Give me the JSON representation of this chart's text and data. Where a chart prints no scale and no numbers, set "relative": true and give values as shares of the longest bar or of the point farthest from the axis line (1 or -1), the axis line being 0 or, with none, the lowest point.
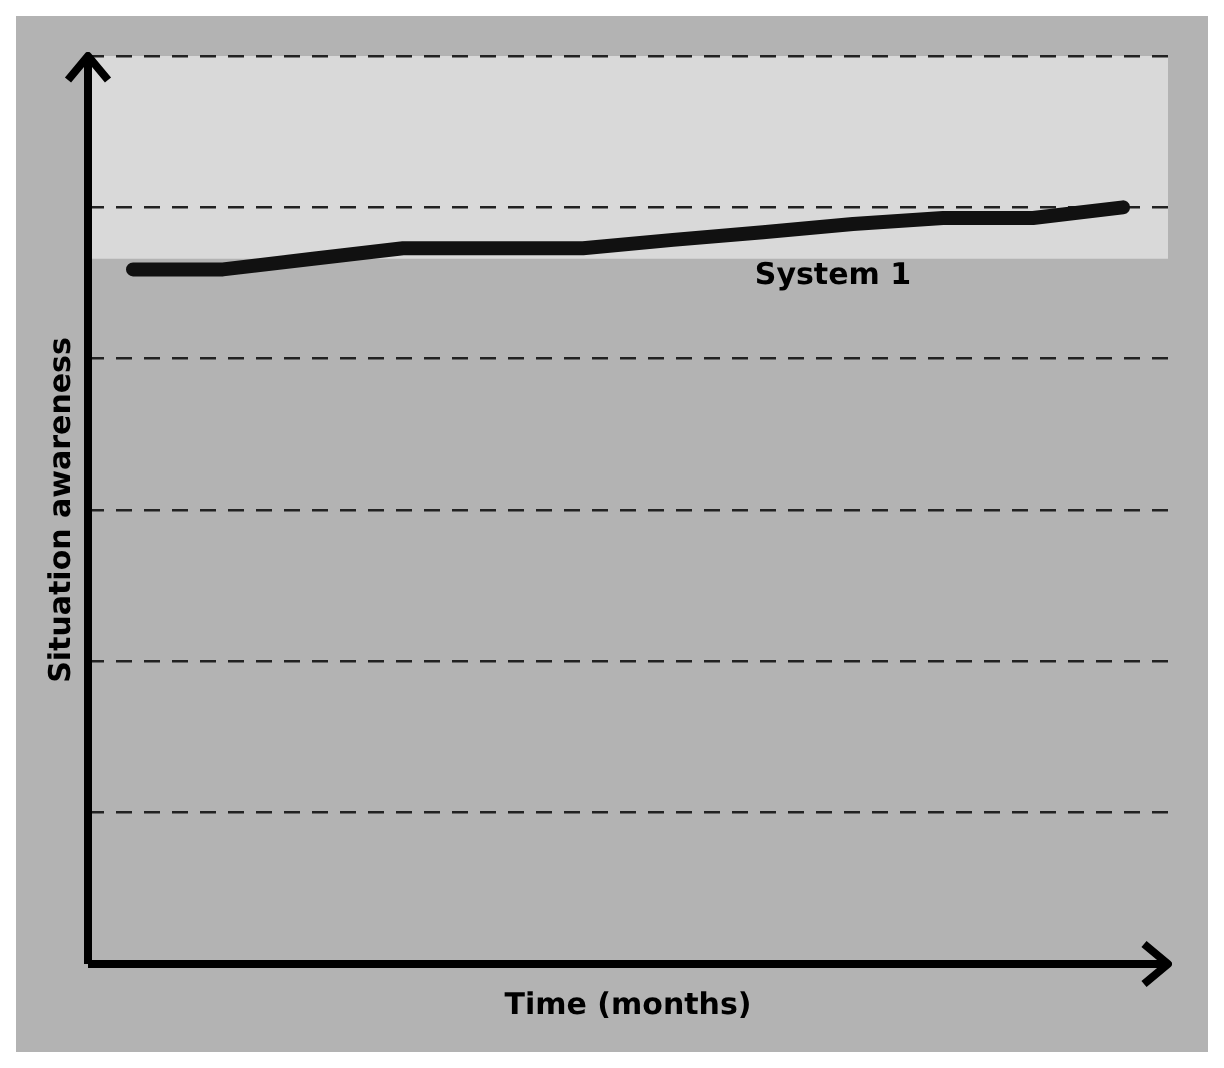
{
  "chart_data": {
    "type": "line",
    "relative": true,
    "xlabel": "Time (months)",
    "ylabel": "Situation awareness",
    "categories": [
      null,
      null,
      null,
      null,
      null,
      null,
      null,
      null,
      null,
      null,
      null,
      null
    ],
    "series": [
      {
        "color": "#111111",
        "values": [
          0.918,
          0.918,
          0.932,
          0.946,
          0.946,
          0.946,
          0.957,
          0.967,
          0.978,
          0.986,
          0.986,
          1
        ]
      }
    ],
    "bands": [
      {
        "axis": "y",
        "from": 0.932,
        "to": 1.2,
        "color": "#d9d9d9"
      }
    ],
    "annotations": [
      "System 1"
    ],
    "grid": "y",
    "legend": false,
    "marker": "none",
    "line_style": "solid"
  }
}
